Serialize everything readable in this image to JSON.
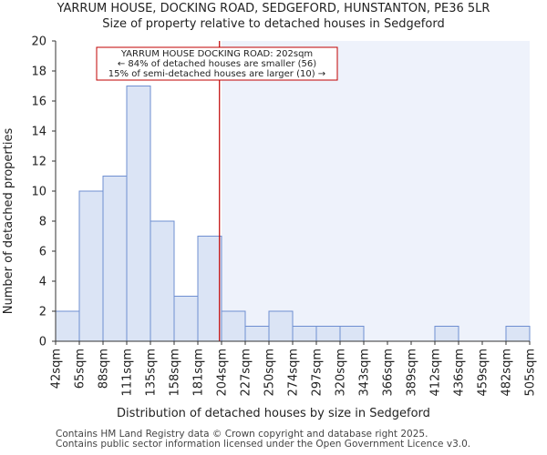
{
  "chart_data": {
    "type": "bar",
    "title": "YARRUM HOUSE, DOCKING ROAD, SEDGEFORD, HUNSTANTON, PE36 5LR",
    "subtitle": "Size of property relative to detached houses in Sedgeford",
    "xlabel": "Distribution of detached houses by size in Sedgeford",
    "ylabel": "Number of detached properties",
    "ylim": [
      0,
      20
    ],
    "yticks": [
      0,
      2,
      4,
      6,
      8,
      10,
      12,
      14,
      16,
      18,
      20
    ],
    "bin_edges": [
      "42sqm",
      "65sqm",
      "88sqm",
      "111sqm",
      "135sqm",
      "158sqm",
      "181sqm",
      "204sqm",
      "227sqm",
      "250sqm",
      "274sqm",
      "297sqm",
      "320sqm",
      "343sqm",
      "366sqm",
      "389sqm",
      "412sqm",
      "436sqm",
      "459sqm",
      "482sqm",
      "505sqm"
    ],
    "values": [
      2,
      10,
      11,
      17,
      8,
      3,
      7,
      2,
      1,
      2,
      1,
      1,
      1,
      0,
      0,
      0,
      1,
      0,
      0,
      1
    ],
    "marker": {
      "value": 202,
      "label": "YARRUM HOUSE DOCKING ROAD: 202sqm",
      "highlight_from_bin": 7
    },
    "annotation": {
      "line1": "YARRUM HOUSE DOCKING ROAD: 202sqm",
      "line2": "← 84% of detached houses are smaller (56)",
      "line3": "15% of semi-detached houses are larger (10) →"
    },
    "colors": {
      "bar_fill": "#dbe4f5",
      "bar_stroke": "#6f8fd1",
      "highlight_bg": "#eef2fb",
      "marker": "#c00000",
      "axis": "#333333"
    }
  },
  "footer": {
    "line1": "Contains HM Land Registry data © Crown copyright and database right 2025.",
    "line2": "Contains public sector information licensed under the Open Government Licence v3.0."
  }
}
